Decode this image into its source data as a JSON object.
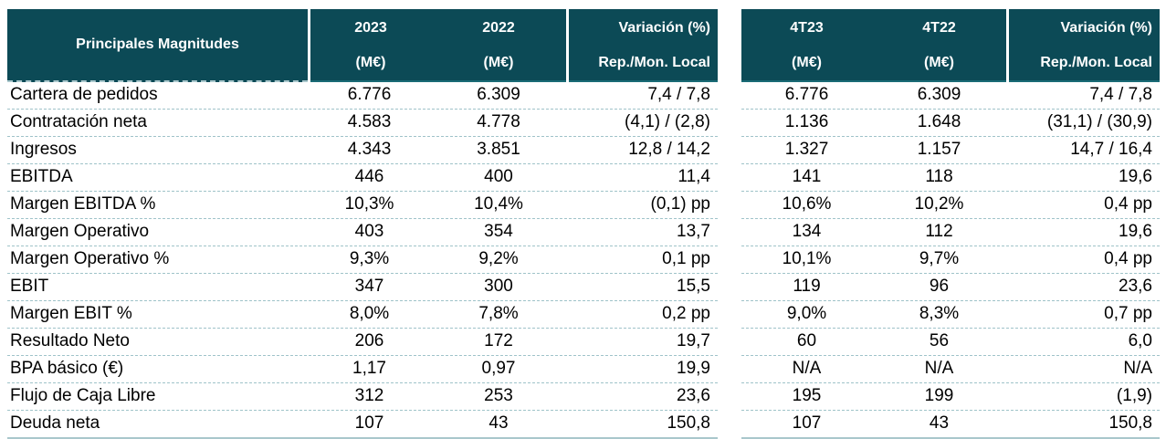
{
  "colors": {
    "header_bg": "#0c4a56",
    "header_text": "#ffffff",
    "header_underline": "#1a6b76",
    "row_separator": "#9fc3c9",
    "body_text": "#000000"
  },
  "left_table": {
    "title": "Principales Magnitudes",
    "columns": [
      {
        "title": "2023",
        "unit": "(M€)"
      },
      {
        "title": "2022",
        "unit": "(M€)"
      }
    ],
    "variacion": {
      "title": "Variación (%)",
      "subtitle": "Rep./Mon. Local"
    }
  },
  "right_table": {
    "columns": [
      {
        "title": "4T23",
        "unit": "(M€)"
      },
      {
        "title": "4T22",
        "unit": "(M€)"
      }
    ],
    "variacion": {
      "title": "Variación (%)",
      "subtitle": "Rep./Mon. Local"
    }
  },
  "rows": [
    {
      "label": "Cartera de pedidos",
      "y2023": "6.776",
      "y2022": "6.309",
      "var_fy": "7,4 / 7,8",
      "q4_23": "6.776",
      "q4_22": "6.309",
      "var_q": "7,4 / 7,8"
    },
    {
      "label": "Contratación neta",
      "y2023": "4.583",
      "y2022": "4.778",
      "var_fy": "(4,1) / (2,8)",
      "q4_23": "1.136",
      "q4_22": "1.648",
      "var_q": "(31,1) / (30,9)"
    },
    {
      "label": "Ingresos",
      "y2023": "4.343",
      "y2022": "3.851",
      "var_fy": "12,8 / 14,2",
      "q4_23": "1.327",
      "q4_22": "1.157",
      "var_q": "14,7 / 16,4"
    },
    {
      "label": "EBITDA",
      "y2023": "446",
      "y2022": "400",
      "var_fy": "11,4",
      "q4_23": "141",
      "q4_22": "118",
      "var_q": "19,6"
    },
    {
      "label": "Margen EBITDA %",
      "y2023": "10,3%",
      "y2022": "10,4%",
      "var_fy": "(0,1) pp",
      "q4_23": "10,6%",
      "q4_22": "10,2%",
      "var_q": "0,4 pp"
    },
    {
      "label": "Margen Operativo",
      "y2023": "403",
      "y2022": "354",
      "var_fy": "13,7",
      "q4_23": "134",
      "q4_22": "112",
      "var_q": "19,6"
    },
    {
      "label": "Margen Operativo %",
      "y2023": "9,3%",
      "y2022": "9,2%",
      "var_fy": "0,1 pp",
      "q4_23": "10,1%",
      "q4_22": "9,7%",
      "var_q": "0,4 pp"
    },
    {
      "label": "EBIT",
      "y2023": "347",
      "y2022": "300",
      "var_fy": "15,5",
      "q4_23": "119",
      "q4_22": "96",
      "var_q": "23,6"
    },
    {
      "label": "Margen EBIT %",
      "y2023": "8,0%",
      "y2022": "7,8%",
      "var_fy": "0,2 pp",
      "q4_23": "9,0%",
      "q4_22": "8,3%",
      "var_q": "0,7 pp"
    },
    {
      "label": "Resultado Neto",
      "y2023": "206",
      "y2022": "172",
      "var_fy": "19,7",
      "q4_23": "60",
      "q4_22": "56",
      "var_q": "6,0"
    },
    {
      "label": "BPA básico (€)",
      "y2023": "1,17",
      "y2022": "0,97",
      "var_fy": "19,9",
      "q4_23": "N/A",
      "q4_22": "N/A",
      "var_q": "N/A"
    },
    {
      "label": "Flujo de Caja Libre",
      "y2023": "312",
      "y2022": "253",
      "var_fy": "23,6",
      "q4_23": "195",
      "q4_22": "199",
      "var_q": "(1,9)"
    },
    {
      "label": "Deuda neta",
      "y2023": "107",
      "y2022": "43",
      "var_fy": "150,8",
      "q4_23": "107",
      "q4_22": "43",
      "var_q": "150,8"
    }
  ]
}
